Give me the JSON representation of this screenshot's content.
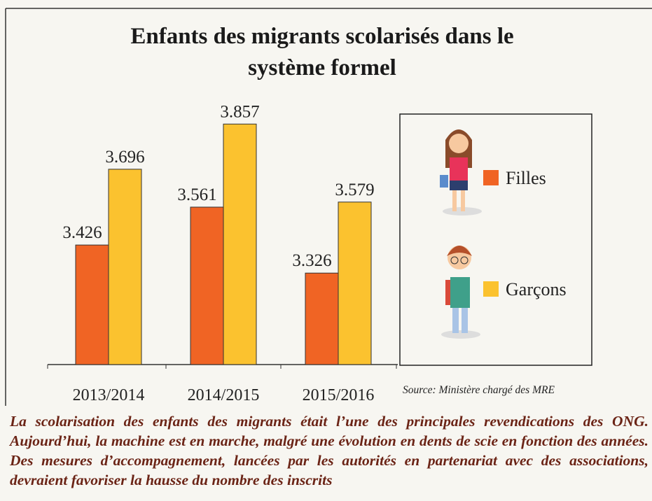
{
  "chart_data": {
    "type": "bar",
    "title": "Enfants des migrants scolarisés dans le système formel",
    "categories": [
      "2013/2014",
      "2014/2015",
      "2015/2016"
    ],
    "series": [
      {
        "name": "Filles",
        "color": "#f06424",
        "values": [
          3.426,
          3.561,
          3.326
        ]
      },
      {
        "name": "Garçons",
        "color": "#fbc22f",
        "values": [
          3.696,
          3.857,
          3.579
        ]
      }
    ],
    "ylim": [
      3.0,
      3.925
    ],
    "source": "Source: Ministère chargé des MRE"
  },
  "caption": "La scolarisation des enfants des migrants était l’une des principales revendications des ONG. Aujourd’hui, la machine est en marche, malgré une évolution en dents de scie en fonction des années. Des mesures d’accompagnement, lancées par les autorités en partenariat avec des associations, devraient favoriser la hausse du nombre des inscrits"
}
